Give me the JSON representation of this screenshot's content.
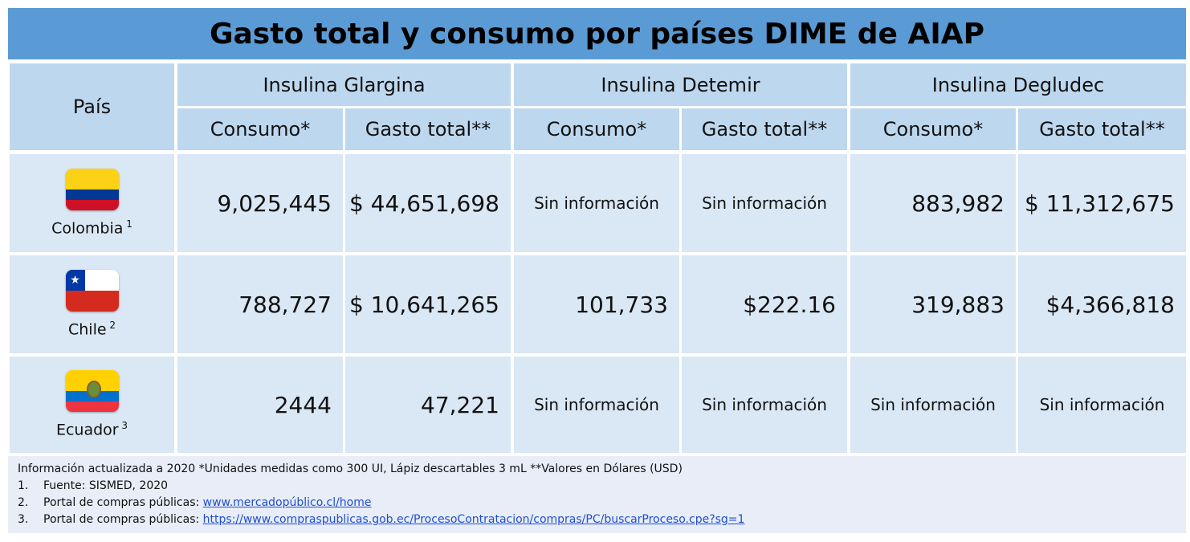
{
  "title": "Gasto total y consumo por países DIME de AIAP",
  "header": {
    "country_col": "País",
    "groups": [
      "Insulina Glargina",
      "Insulina Detemir",
      "Insulina Degludec"
    ],
    "sub": [
      "Consumo*",
      "Gasto total**",
      "Consumo*",
      "Gasto total**",
      "Consumo*",
      "Gasto total**"
    ]
  },
  "rows": [
    {
      "country": "Colombia",
      "note": "1",
      "flag": "colombia-flag",
      "values": [
        "9,025,445",
        "$ 44,651,698",
        "Sin información",
        "Sin información",
        "883,982",
        "$ 11,312,675"
      ]
    },
    {
      "country": "Chile",
      "note": "2",
      "flag": "chile-flag",
      "values": [
        "788,727",
        "$ 10,641,265",
        "101,733",
        "$222.16",
        "319,883",
        "$4,366,818"
      ]
    },
    {
      "country": "Ecuador",
      "note": "3",
      "flag": "ecuador-flag",
      "values": [
        "2444",
        "47,221",
        "Sin información",
        "Sin información",
        "Sin información",
        "Sin información"
      ]
    }
  ],
  "notes": {
    "line0": "Información actualizada a 2020 *Unidades medidas como 300 UI, Lápiz descartables 3 mL **Valores en Dólares (USD)",
    "items": [
      {
        "num": "1.",
        "text": "Fuente: SISMED, 2020",
        "link": ""
      },
      {
        "num": "2.",
        "text": "Portal de compras públicas: ",
        "link": "www.mercadopúblico.cl/home"
      },
      {
        "num": "3.",
        "text": "Portal de compras públicas: ",
        "link": "https://www.compraspublicas.gob.ec/ProcesoContratacion/compras/PC/buscarProceso.cpe?sg=1"
      }
    ]
  },
  "colors": {
    "title_bg": "#5b9bd5",
    "header_bg": "#bdd7ee",
    "cell_bg": "#dae7f4",
    "link": "#1f4fd1"
  }
}
